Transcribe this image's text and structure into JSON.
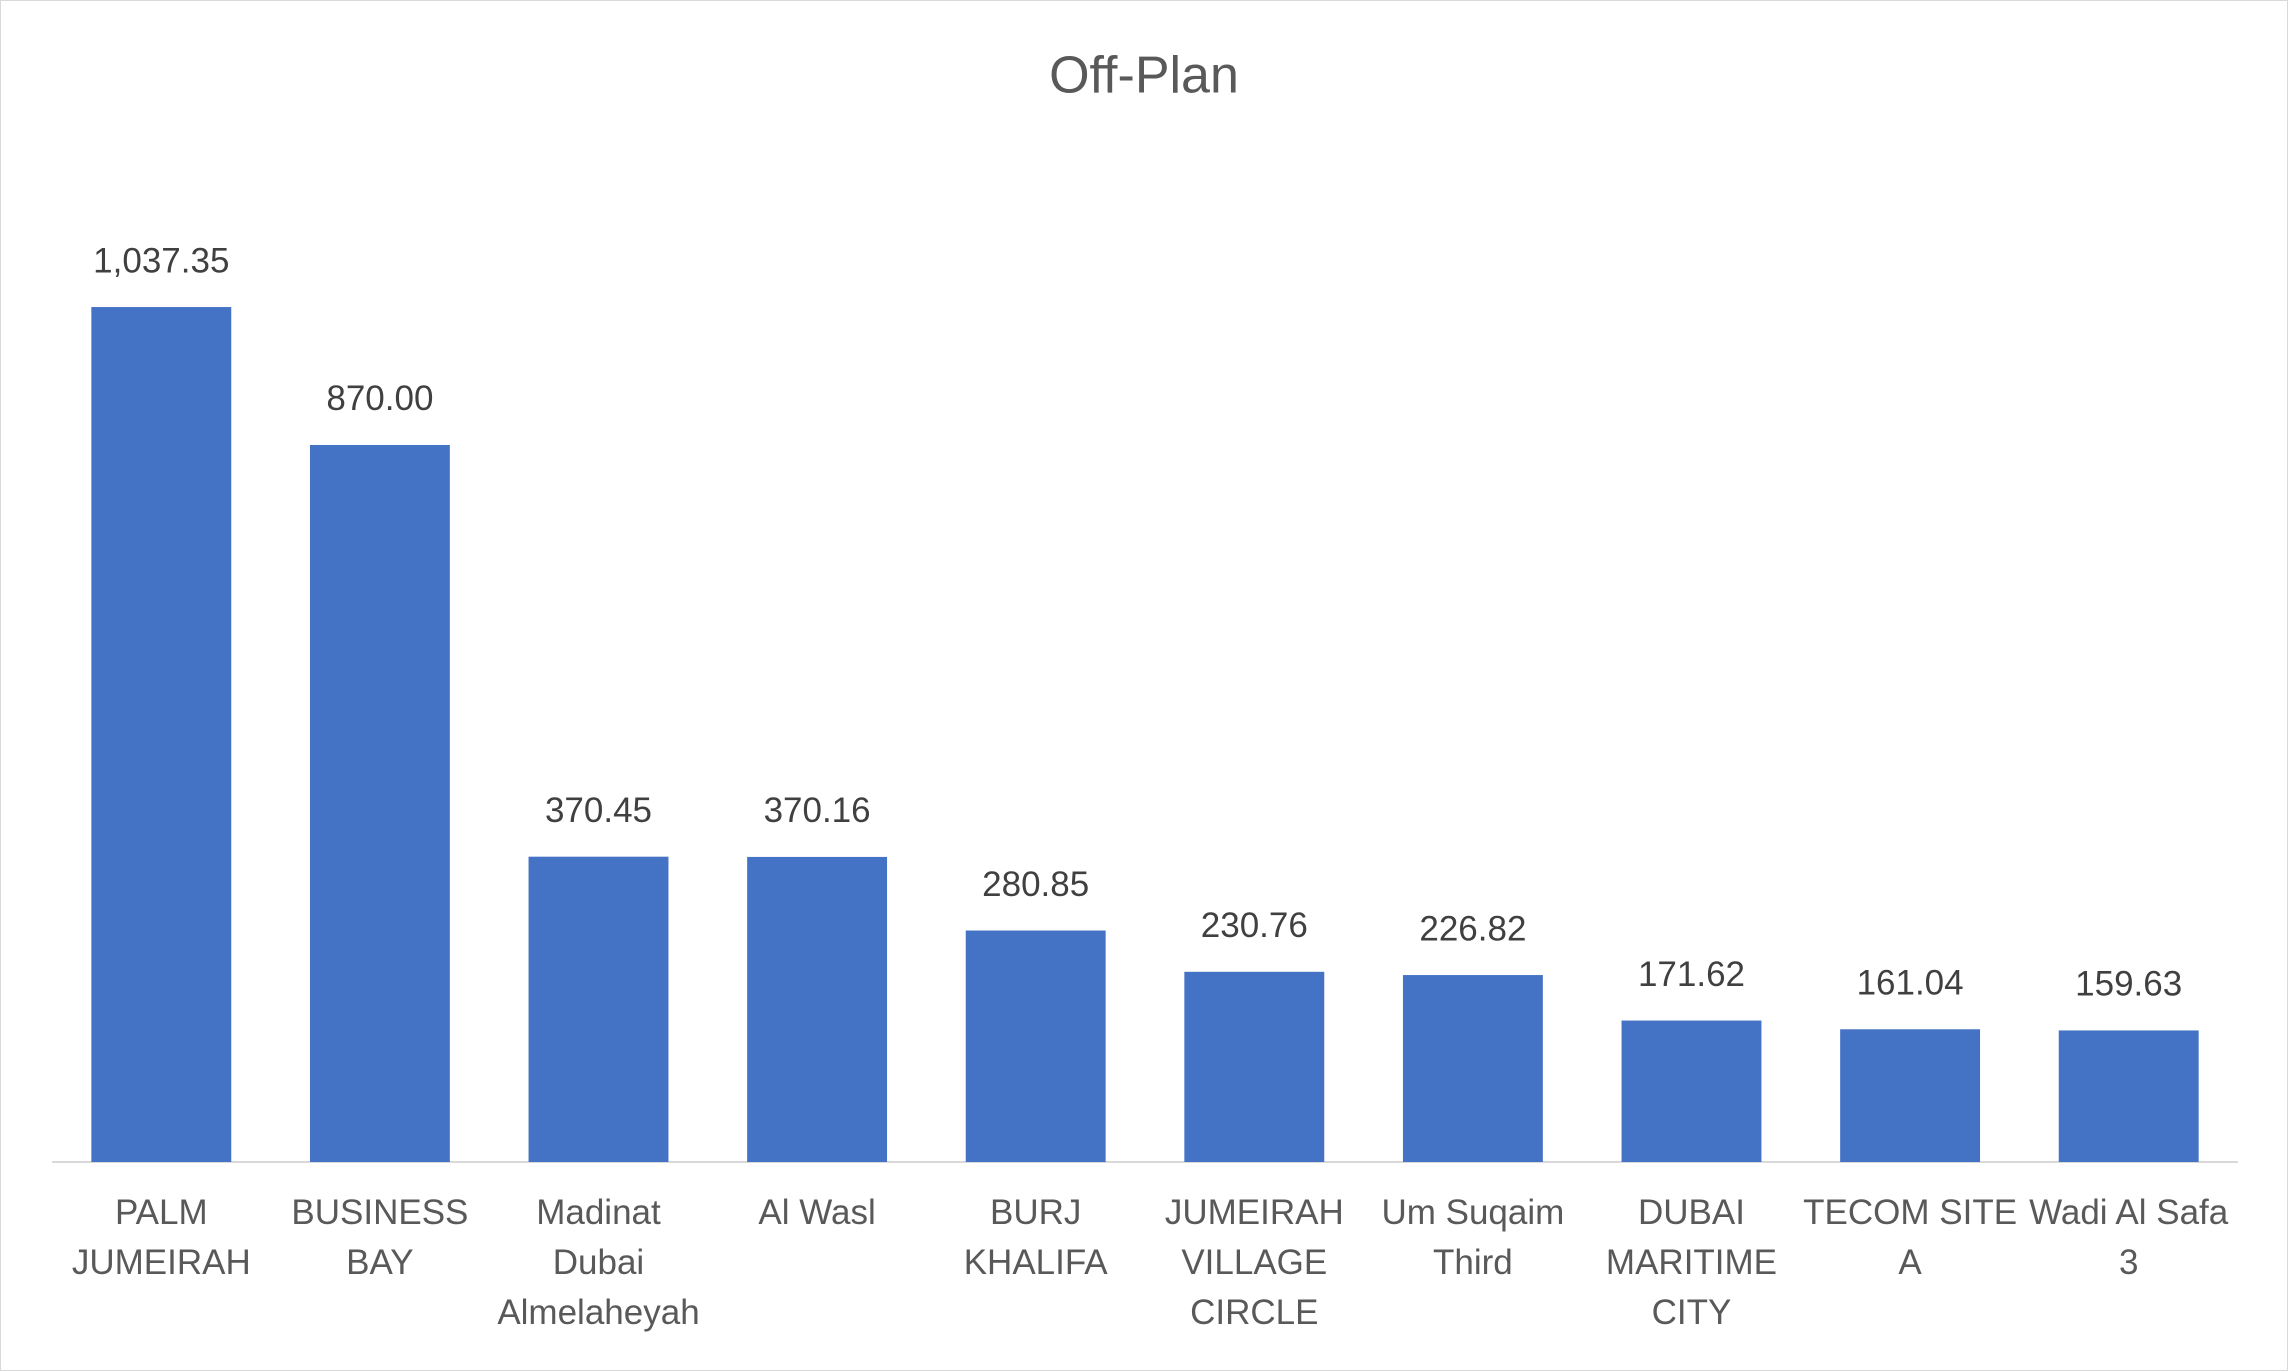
{
  "chart_data": {
    "type": "bar",
    "title": "Off-Plan",
    "categories": [
      "PALM JUMEIRAH",
      "BUSINESS BAY",
      "Madinat Dubai Almelaheyah",
      "Al Wasl",
      "BURJ KHALIFA",
      "JUMEIRAH VILLAGE CIRCLE",
      "Um Suqaim Third",
      "DUBAI MARITIME CITY",
      "TECOM SITE A",
      "Wadi Al Safa 3"
    ],
    "values": [
      1037.35,
      870.0,
      370.45,
      370.16,
      280.85,
      230.76,
      226.82,
      171.62,
      161.04,
      159.63
    ],
    "value_labels": [
      "1,037.35",
      "870.00",
      "370.45",
      "370.16",
      "280.85",
      "230.76",
      "226.82",
      "171.62",
      "161.04",
      "159.63"
    ],
    "color": "#4472c4",
    "ylim": [
      0,
      1200
    ]
  }
}
